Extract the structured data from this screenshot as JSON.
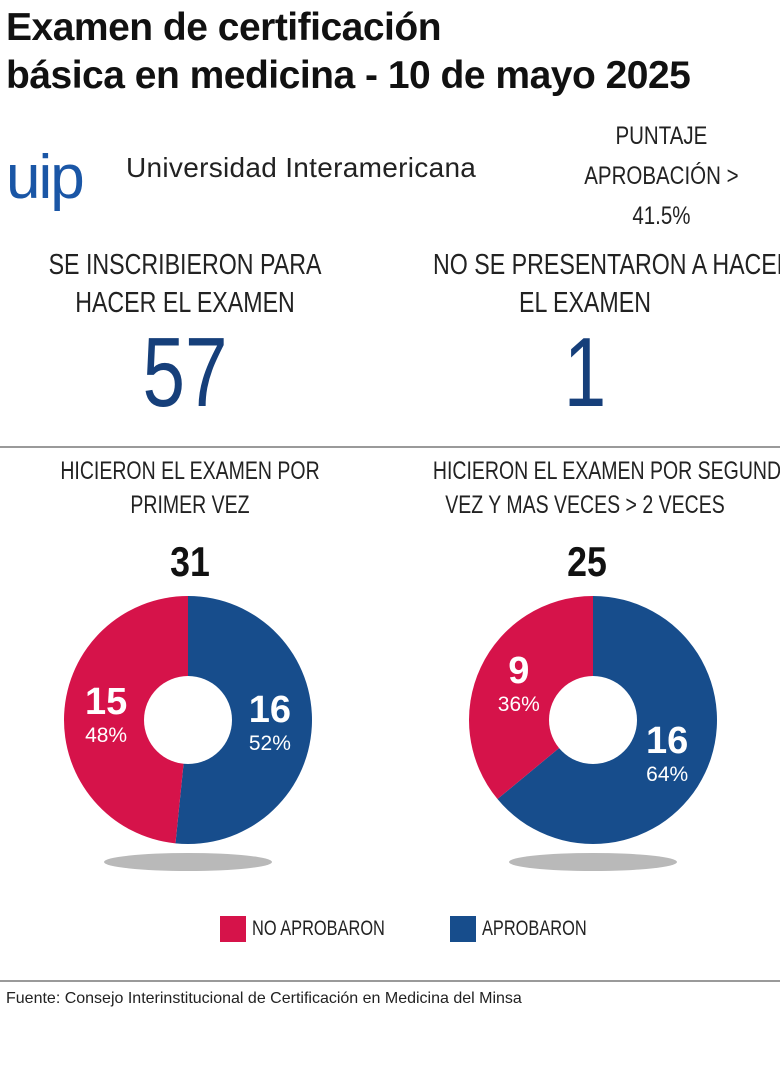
{
  "title_line1": "Examen de certificación",
  "title_line2": "básica en medicina - 10 de mayo 2025",
  "logo_text": "uip",
  "university": "Universidad Interamericana",
  "threshold_label": "PUNTAJE",
  "threshold_value": "APROBACIÓN > 41.5%",
  "registered": {
    "label_1": "SE INSCRIBIERON PARA",
    "label_2": "HACER EL EXAMEN",
    "value": "57"
  },
  "absent": {
    "label_1": "NO SE PRESENTARON A HACER",
    "label_2": "EL EXAMEN",
    "value": "1"
  },
  "colors": {
    "not_passed": "#d6134a",
    "passed": "#174d8c",
    "accent": "#1a56a6"
  },
  "chart_data": [
    {
      "type": "pie",
      "title_1": "HICIERON  EL EXAMEN POR",
      "title_2": "PRIMER VEZ",
      "total": "31",
      "slices": [
        {
          "name": "NO APROBARON",
          "value": 15,
          "percent": 48,
          "value_label": "15",
          "percent_label": "48%"
        },
        {
          "name": "APROBARON",
          "value": 16,
          "percent": 52,
          "value_label": "16",
          "percent_label": "52%"
        }
      ]
    },
    {
      "type": "pie",
      "title_1": "HICIERON  EL EXAMEN POR SEGUNDA",
      "title_2": "VEZ Y MAS VECES > 2 VECES",
      "total": "25",
      "slices": [
        {
          "name": "NO APROBARON",
          "value": 9,
          "percent": 36,
          "value_label": "9",
          "percent_label": "36%"
        },
        {
          "name": "APROBARON",
          "value": 16,
          "percent": 64,
          "value_label": "16",
          "percent_label": "64%"
        }
      ]
    }
  ],
  "legend": {
    "not_passed": "NO APROBARON",
    "passed": "APROBARON"
  },
  "source": "Fuente: Consejo Interinstitucional de Certificación en Medicina del Minsa"
}
